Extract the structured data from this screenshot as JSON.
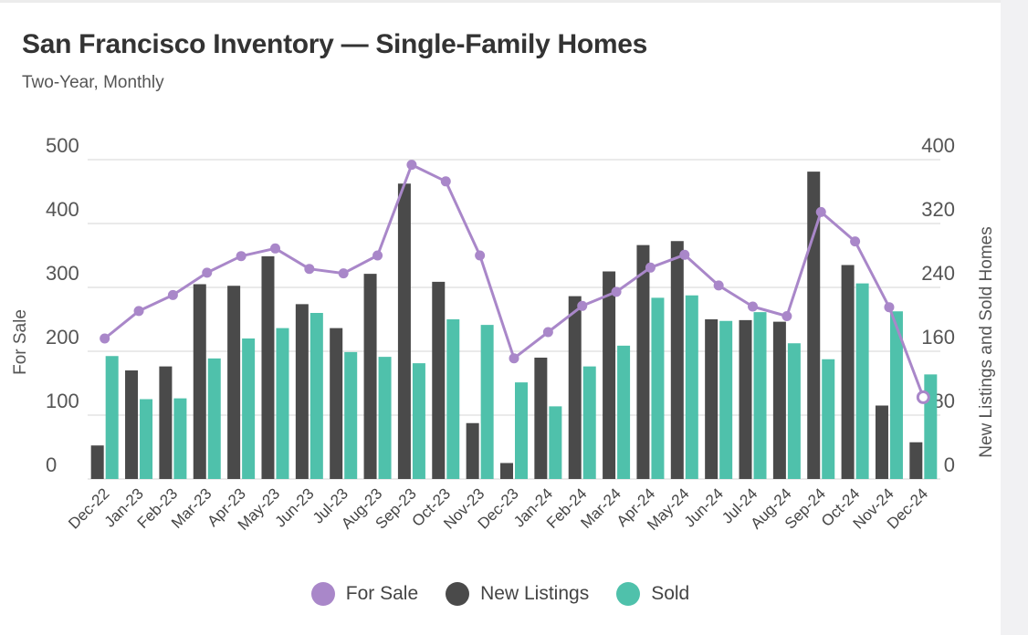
{
  "header": {
    "title": "San Francisco Inventory — Single-Family Homes",
    "subtitle": "Two-Year, Monthly"
  },
  "colors": {
    "for_sale": "#a987c9",
    "new_listings": "#4a4a4a",
    "sold": "#4fc1ab",
    "grid": "#dddddd"
  },
  "chart_data": {
    "type": "bar+line",
    "categories": [
      "Dec-22",
      "Jan-23",
      "Feb-23",
      "Mar-23",
      "Apr-23",
      "May-23",
      "Jun-23",
      "Jul-23",
      "Aug-23",
      "Sep-23",
      "Oct-23",
      "Nov-23",
      "Dec-23",
      "Jan-24",
      "Feb-24",
      "Mar-24",
      "Apr-24",
      "May-24",
      "Jun-24",
      "Jul-24",
      "Aug-24",
      "Sep-24",
      "Oct-24",
      "Nov-24",
      "Dec-24"
    ],
    "left_axis": {
      "label": "For Sale",
      "ticks": [
        0,
        100,
        200,
        300,
        400,
        500
      ],
      "ylim": [
        0,
        500
      ]
    },
    "right_axis": {
      "label": "New Listings and Sold Homes",
      "ticks": [
        0,
        80,
        160,
        240,
        320,
        400
      ],
      "ylim": [
        0,
        400
      ]
    },
    "series": [
      {
        "name": "For Sale",
        "type": "line",
        "axis": "left",
        "values": [
          220,
          263,
          288,
          323,
          349,
          361,
          329,
          322,
          350,
          492,
          466,
          350,
          189,
          230,
          271,
          293,
          331,
          351,
          303,
          270,
          255,
          418,
          372,
          269,
          128
        ]
      },
      {
        "name": "New Listings",
        "type": "bar",
        "axis": "right",
        "values": [
          42,
          136,
          141,
          244,
          242,
          279,
          219,
          189,
          257,
          370,
          247,
          70,
          20,
          152,
          229,
          260,
          293,
          298,
          200,
          199,
          197,
          385,
          268,
          92,
          46
        ]
      },
      {
        "name": "Sold",
        "type": "bar",
        "axis": "right",
        "values": [
          154,
          100,
          101,
          151,
          176,
          189,
          208,
          159,
          153,
          145,
          200,
          193,
          121,
          91,
          141,
          167,
          227,
          230,
          198,
          209,
          170,
          150,
          245,
          210,
          131
        ]
      }
    ]
  },
  "legend": {
    "items": [
      {
        "label": "For Sale"
      },
      {
        "label": "New Listings"
      },
      {
        "label": "Sold"
      }
    ]
  }
}
